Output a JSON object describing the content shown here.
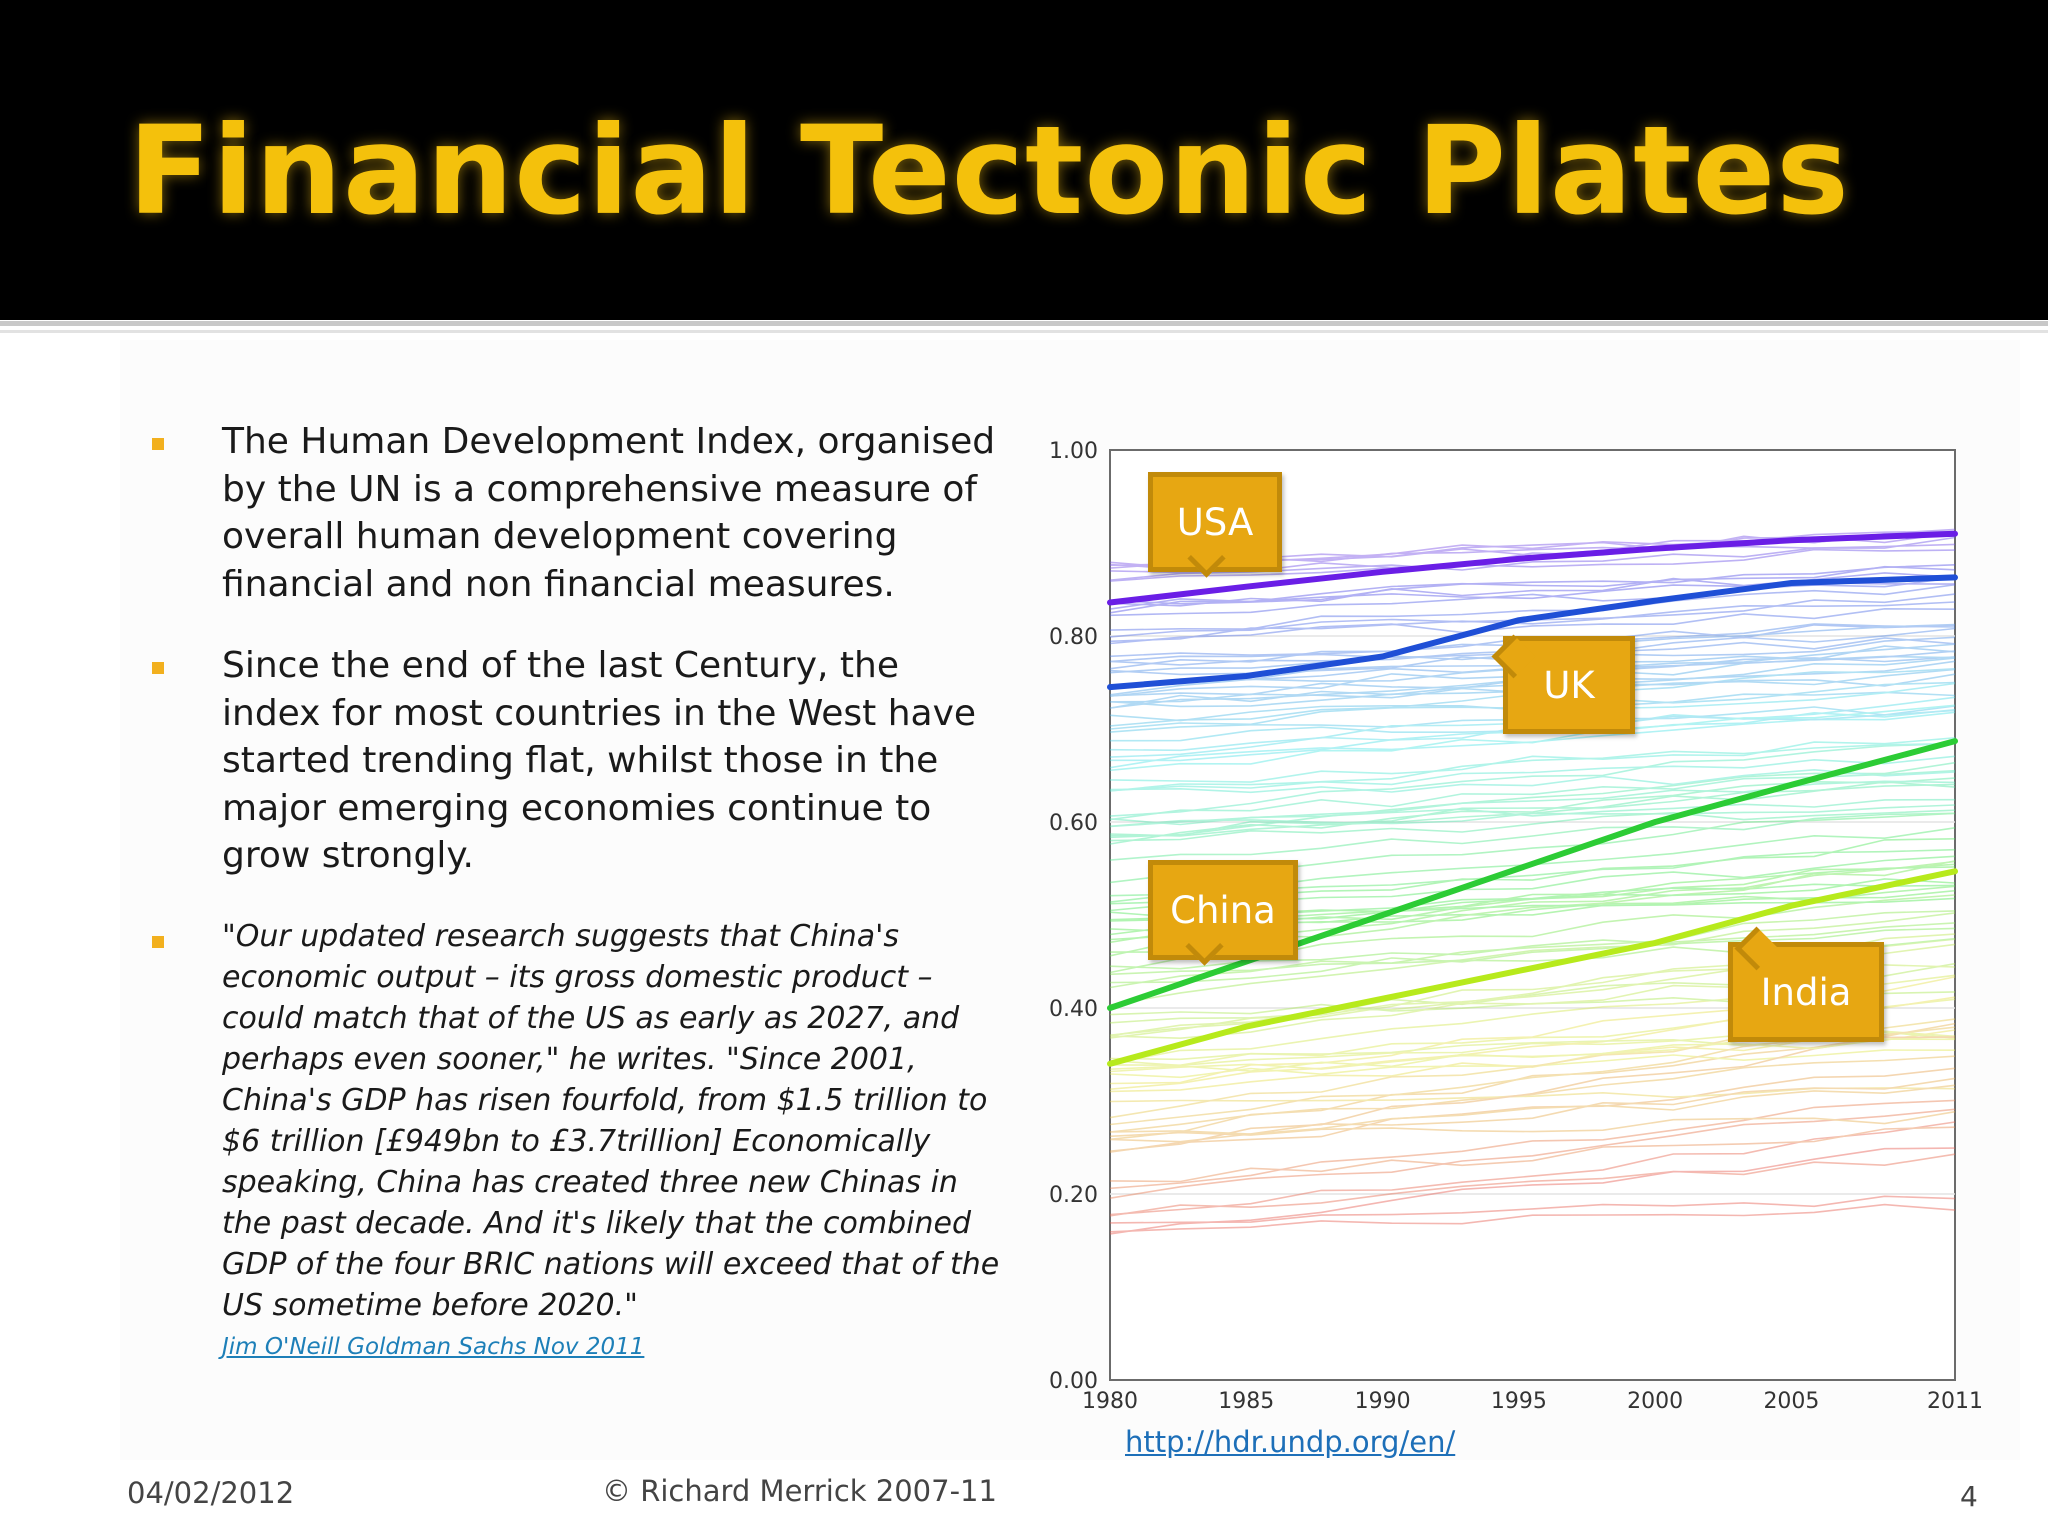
{
  "slide": {
    "title": "Financial Tectonic Plates",
    "bullets": [
      "The Human Development Index, organised by the UN is a comprehensive measure of overall human development covering financial and non financial measures.",
      "Since the end of the last  Century, the index for most countries in the West have started trending flat, whilst those in the major emerging economies continue to grow strongly."
    ],
    "quote": "\"Our updated research suggests that China's economic output – its gross domestic product – could match that of the US as early as 2027, and perhaps even sooner,\" he writes. \"Since 2001, China's GDP has risen fourfold, from $1.5 trillion to $6 trillion [£949bn to £3.7trillion] Economically speaking, China has created three new Chinas in the past decade. And it's likely that the combined GDP of the four BRIC nations will exceed that of the US sometime before 2020.\"",
    "quote_source": "Jim O'Neill Goldman Sachs Nov 2011",
    "source_link": "http://hdr.undp.org/en/",
    "footer": {
      "date": "04/02/2012",
      "copyright": "© Richard Merrick 2007-11",
      "page": "4"
    },
    "colors": {
      "title": "#f4c10c",
      "header_bg": "#000000",
      "bullet_marker": "#f2b01e",
      "callout_fill": "#e7a712",
      "link": "#1d6fb8"
    }
  },
  "chart_data": {
    "type": "line",
    "title": "",
    "xlabel": "",
    "ylabel": "",
    "x_ticks": [
      "1980",
      "1985",
      "1990",
      "1995",
      "2000",
      "2005",
      "2011"
    ],
    "y_ticks": [
      "0.00",
      "0.20",
      "0.40",
      "0.60",
      "0.80",
      "1.00"
    ],
    "xlim": [
      1980,
      2011
    ],
    "ylim": [
      0,
      1
    ],
    "grid": "horizontal",
    "background_lines": "many faint country series colored from red (low) to violet (high)",
    "x": [
      1980,
      1985,
      1990,
      1995,
      2000,
      2005,
      2011
    ],
    "series": [
      {
        "name": "USA",
        "color": "#6a1ee6",
        "values": [
          0.836,
          0.853,
          0.869,
          0.883,
          0.894,
          0.903,
          0.91
        ]
      },
      {
        "name": "UK",
        "color": "#1f4fd6",
        "values": [
          0.745,
          0.757,
          0.778,
          0.817,
          0.838,
          0.857,
          0.863
        ]
      },
      {
        "name": "China",
        "color": "#2ccc35",
        "values": [
          0.4,
          0.45,
          0.5,
          0.55,
          0.6,
          0.64,
          0.687
        ]
      },
      {
        "name": "India",
        "color": "#b7ea1c",
        "values": [
          0.34,
          0.38,
          0.41,
          0.44,
          0.47,
          0.51,
          0.547
        ]
      }
    ],
    "callouts": [
      {
        "label": "USA"
      },
      {
        "label": "UK"
      },
      {
        "label": "China"
      },
      {
        "label": "India"
      }
    ]
  }
}
